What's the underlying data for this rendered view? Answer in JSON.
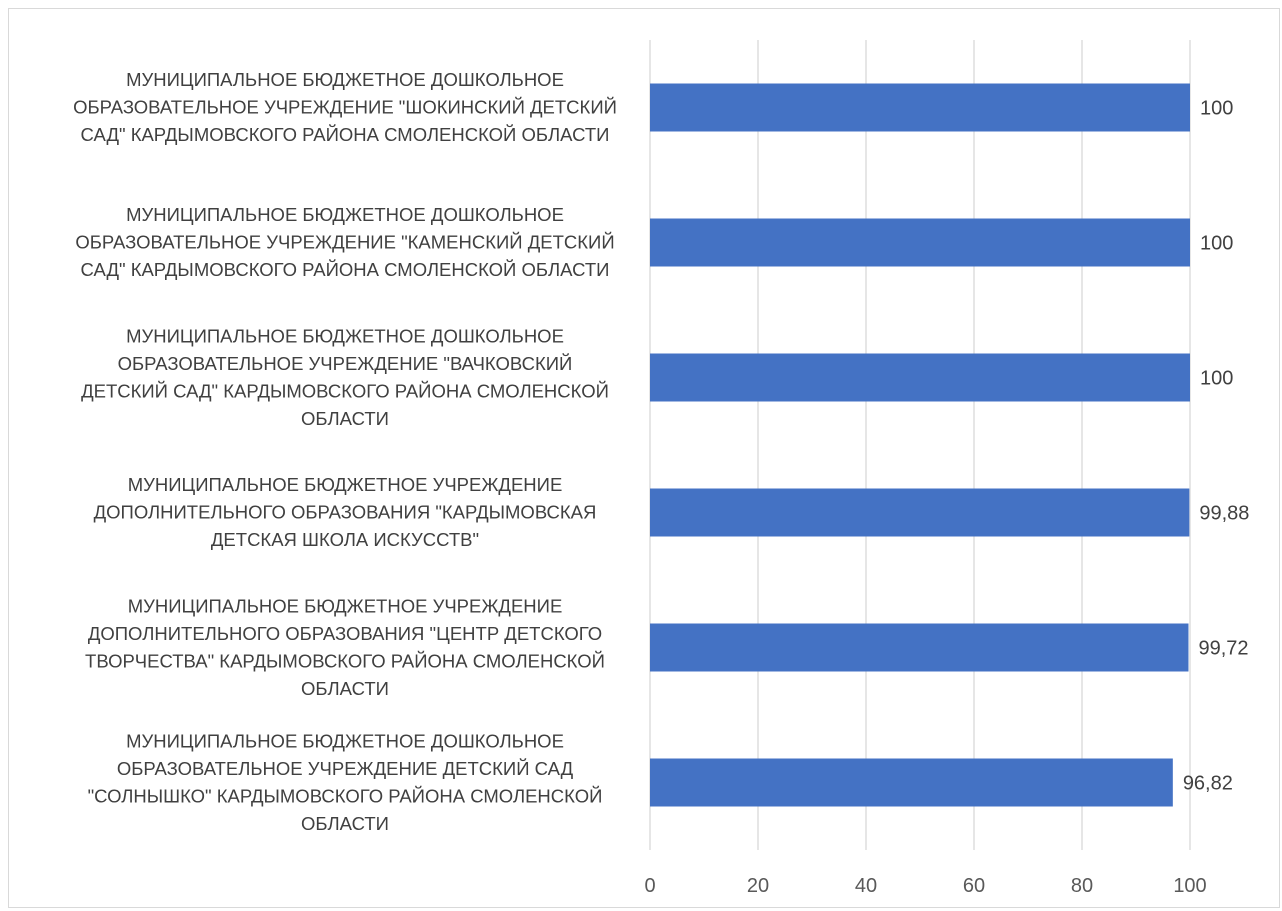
{
  "chart_data": {
    "type": "bar",
    "orientation": "horizontal",
    "title": "",
    "xlabel": "",
    "ylabel": "",
    "xlim": [
      0,
      100
    ],
    "grid": true,
    "legend": "none",
    "bar_color": "#4472c4",
    "categories": [
      "МУНИЦИПАЛЬНОЕ БЮДЖЕТНОЕ ДОШКОЛЬНОЕ ОБРАЗОВАТЕЛЬНОЕ УЧРЕЖДЕНИЕ \"ШОКИНСКИЙ ДЕТСКИЙ САД\" КАРДЫМОВСКОГО РАЙОНА СМОЛЕНСКОЙ ОБЛАСТИ",
      "МУНИЦИПАЛЬНОЕ БЮДЖЕТНОЕ ДОШКОЛЬНОЕ ОБРАЗОВАТЕЛЬНОЕ УЧРЕЖДЕНИЕ \"КАМЕНСКИЙ ДЕТСКИЙ САД\" КАРДЫМОВСКОГО РАЙОНА СМОЛЕНСКОЙ ОБЛАСТИ",
      "МУНИЦИПАЛЬНОЕ БЮДЖЕТНОЕ ДОШКОЛЬНОЕ ОБРАЗОВАТЕЛЬНОЕ УЧРЕЖДЕНИЕ \"ВАЧКОВСКИЙ ДЕТСКИЙ САД\" КАРДЫМОВСКОГО РАЙОНА СМОЛЕНСКОЙ ОБЛАСТИ",
      "МУНИЦИПАЛЬНОЕ БЮДЖЕТНОЕ УЧРЕЖДЕНИЕ ДОПОЛНИТЕЛЬНОГО ОБРАЗОВАНИЯ \"КАРДЫМОВСКАЯ ДЕТСКАЯ ШКОЛА ИСКУССТВ\"",
      "МУНИЦИПАЛЬНОЕ БЮДЖЕТНОЕ УЧРЕЖДЕНИЕ ДОПОЛНИТЕЛЬНОГО ОБРАЗОВАНИЯ \"ЦЕНТР ДЕТСКОГО ТВОРЧЕСТВА\" КАРДЫМОВСКОГО РАЙОНА СМОЛЕНСКОЙ ОБЛАСТИ",
      "МУНИЦИПАЛЬНОЕ БЮДЖЕТНОЕ ДОШКОЛЬНОЕ ОБРАЗОВАТЕЛЬНОЕ УЧРЕЖДЕНИЕ ДЕТСКИЙ САД \"СОЛНЫШКО\" КАРДЫМОВСКОГО РАЙОНА СМОЛЕНСКОЙ ОБЛАСТИ"
    ],
    "category_label_lines": [
      [
        "МУНИЦИПАЛЬНОЕ БЮДЖЕТНОЕ ДОШКОЛЬНОЕ",
        "ОБРАЗОВАТЕЛЬНОЕ УЧРЕЖДЕНИЕ \"ШОКИНСКИЙ ДЕТСКИЙ",
        "САД\" КАРДЫМОВСКОГО РАЙОНА СМОЛЕНСКОЙ ОБЛАСТИ"
      ],
      [
        "МУНИЦИПАЛЬНОЕ БЮДЖЕТНОЕ ДОШКОЛЬНОЕ",
        "ОБРАЗОВАТЕЛЬНОЕ УЧРЕЖДЕНИЕ \"КАМЕНСКИЙ ДЕТСКИЙ",
        "САД\" КАРДЫМОВСКОГО РАЙОНА СМОЛЕНСКОЙ ОБЛАСТИ"
      ],
      [
        "МУНИЦИПАЛЬНОЕ БЮДЖЕТНОЕ ДОШКОЛЬНОЕ",
        "ОБРАЗОВАТЕЛЬНОЕ УЧРЕЖДЕНИЕ \"ВАЧКОВСКИЙ",
        "ДЕТСКИЙ САД\" КАРДЫМОВСКОГО РАЙОНА СМОЛЕНСКОЙ",
        "ОБЛАСТИ"
      ],
      [
        "МУНИЦИПАЛЬНОЕ БЮДЖЕТНОЕ УЧРЕЖДЕНИЕ",
        "ДОПОЛНИТЕЛЬНОГО ОБРАЗОВАНИЯ \"КАРДЫМОВСКАЯ",
        "ДЕТСКАЯ ШКОЛА ИСКУССТВ\""
      ],
      [
        "МУНИЦИПАЛЬНОЕ БЮДЖЕТНОЕ УЧРЕЖДЕНИЕ",
        "ДОПОЛНИТЕЛЬНОГО ОБРАЗОВАНИЯ \"ЦЕНТР ДЕТСКОГО",
        "ТВОРЧЕСТВА\" КАРДЫМОВСКОГО РАЙОНА СМОЛЕНСКОЙ",
        "ОБЛАСТИ"
      ],
      [
        "МУНИЦИПАЛЬНОЕ БЮДЖЕТНОЕ ДОШКОЛЬНОЕ",
        "ОБРАЗОВАТЕЛЬНОЕ УЧРЕЖДЕНИЕ ДЕТСКИЙ САД",
        "\"СОЛНЫШКО\" КАРДЫМОВСКОГО РАЙОНА СМОЛЕНСКОЙ",
        "ОБЛАСТИ"
      ]
    ],
    "values": [
      100,
      100,
      100,
      99.88,
      99.72,
      96.82
    ],
    "data_labels": [
      "100",
      "100",
      "100",
      "99,88",
      "99,72",
      "96,82"
    ],
    "x_ticks": [
      0,
      20,
      40,
      60,
      80,
      100
    ],
    "x_tick_labels": [
      "0",
      "20",
      "40",
      "60",
      "80",
      "100"
    ]
  }
}
